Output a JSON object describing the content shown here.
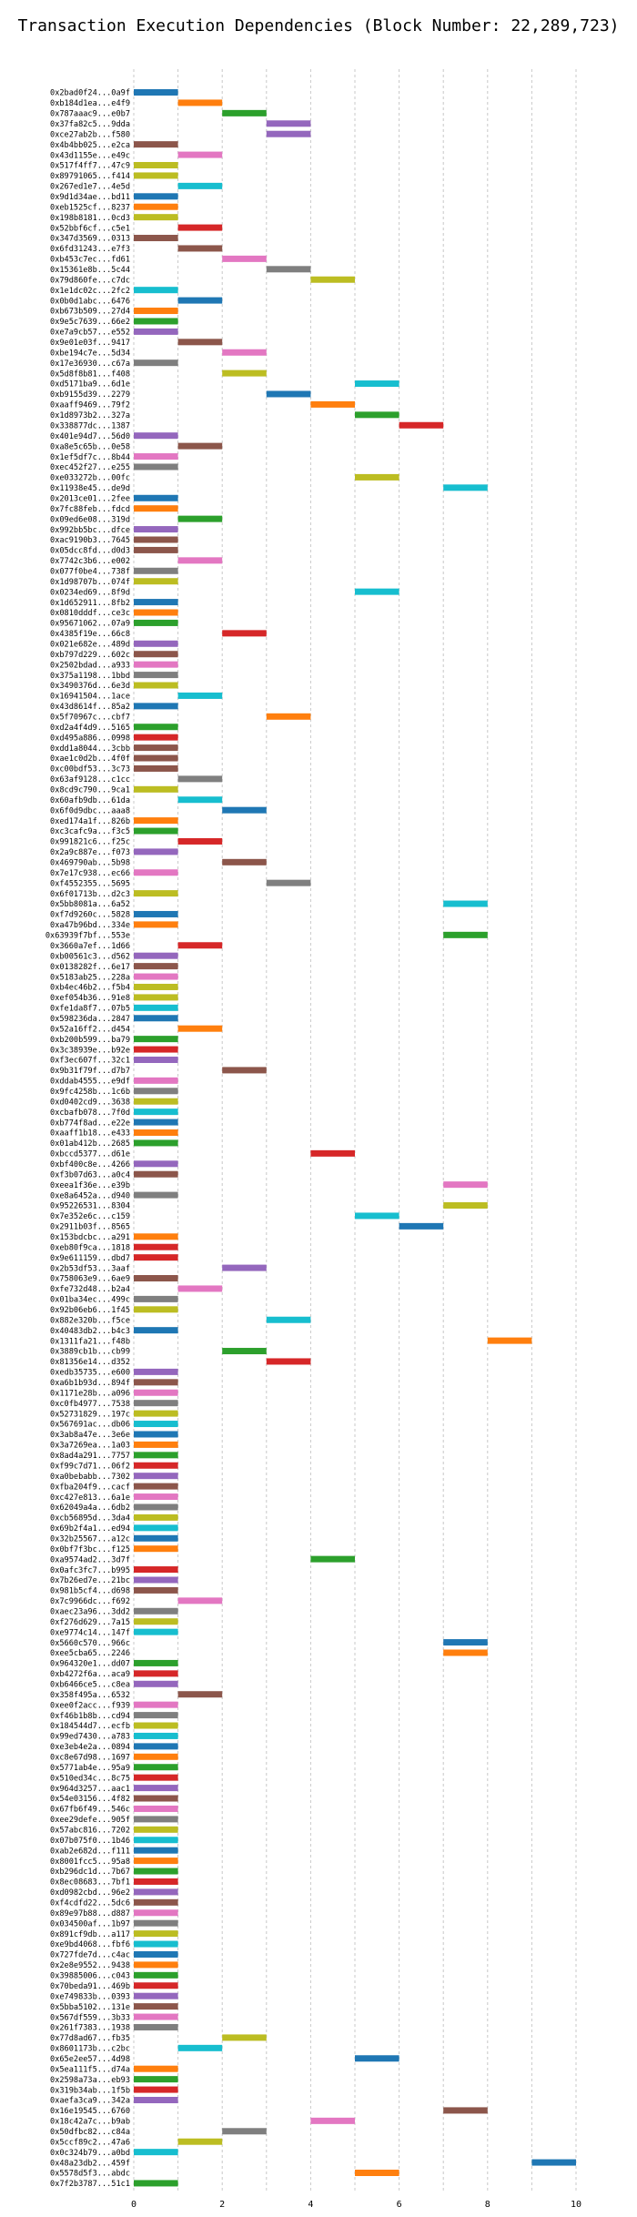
{
  "chart_data": {
    "type": "bar",
    "title": "Transaction Execution Dependencies (Block Number: 22,289,723)",
    "xlabel": "",
    "ylabel": "",
    "xlim": [
      0,
      10
    ],
    "x_ticks": [
      "0",
      "2",
      "4",
      "6",
      "8",
      "10"
    ],
    "grid": "dashed",
    "bar_height_units": 1,
    "palette": [
      "#1f77b4",
      "#ff7f0e",
      "#2ca02c",
      "#d62728",
      "#9467bd",
      "#8c564b",
      "#e377c2",
      "#7f7f7f",
      "#bcbd22",
      "#17becf"
    ],
    "transactions": [
      "0x2bad0f24...0a9f",
      "0xb184d1ea...e4f9",
      "0x787aaac9...e0b7",
      "0x37fa82c5...9dda",
      "0xce27ab2b...f580",
      "0x4b4bb025...e2ca",
      "0x43d1155e...e49c",
      "0x517f4ff7...47c9",
      "0x89791065...f414",
      "0x267ed1e7...4e5d",
      "0x9d1d34ae...bd11",
      "0xeb1525cf...8237",
      "0x198b8181...0cd3",
      "0x52bbf6cf...c5e1",
      "0x347d3569...0313",
      "0x6fd31243...e7f3",
      "0xb453c7ec...fd61",
      "0x15361e8b...5c44",
      "0x79d860fe...c7dc",
      "0x1e1dc02c...2fc2",
      "0x0b0d1abc...6476",
      "0xb673b509...27d4",
      "0x9e5c7639...66e2",
      "0xe7a9cb57...e552",
      "0x9e01e03f...9417",
      "0xbe194c7e...5d34",
      "0x17e36930...c67a",
      "0x5d8f8b81...f408",
      "0xd5171ba9...6d1e",
      "0xb9155d39...2279",
      "0xaaff9469...79f2",
      "0x1d8973b2...327a",
      "0x338877dc...1387",
      "0x401e94d7...56d0",
      "0xa8e5c65b...0e58",
      "0x1ef5df7c...8b44",
      "0xec452f27...e255",
      "0xe033272b...00fc",
      "0x11938e45...de9d",
      "0x2013ce01...2fee",
      "0x7fc88feb...fdcd",
      "0x09ed6e08...319d",
      "0x992bb5bc...dfce",
      "0xac9190b3...7645",
      "0x05dcc8fd...d0d3",
      "0x7742c3b6...e002",
      "0x077f0be4...738f",
      "0x1d98707b...074f",
      "0x0234ed69...8f9d",
      "0x1d652911...8fb2",
      "0x0810dddf...ce3c",
      "0x95671062...07a9",
      "0x4385f19e...66c8",
      "0x021e682e...489d",
      "0xb797d229...602c",
      "0x2502bdad...a933",
      "0x375a1198...1bbd",
      "0x3490376d...6e3d",
      "0x16941504...1ace",
      "0x43d8614f...85a2",
      "0x5f70967c...cbf7",
      "0xd2a4f4d9...5165",
      "0xd495a886...0998",
      "0xdd1a8044...3cbb",
      "0xae1c0d2b...4f0f",
      "0xc00bdf53...3c73",
      "0x63af9128...c1cc",
      "0x8cd9c790...9ca1",
      "0x60afb9db...61da",
      "0x6f0d9dbc...aaa8",
      "0xed174a1f...826b",
      "0xc3cafc9a...f3c5",
      "0x991821c6...f25c",
      "0x2a9c887e...f073",
      "0x469790ab...5b98",
      "0x7e17c938...ec66",
      "0xf4552355...5695",
      "0x6f01713b...d2c3",
      "0x5bb8081a...6a52",
      "0xf7d9260c...5828",
      "0xa47b96bd...334e",
      "0x63939f7bf...553e",
      "0x3660a7ef...1d66",
      "0xb00561c3...d562",
      "0x0138282f...6e17",
      "0x5183ab25...228a",
      "0xb4ec46b2...f5b4",
      "0xef054b36...91e8",
      "0xfe1da8f7...07b5",
      "0x598236da...2847",
      "0x52a16ff2...d454",
      "0xb200b599...ba79",
      "0x3c38939e...b92e",
      "0xf3ec607f...32c1",
      "0x9b31f79f...d7b7",
      "0xddab4555...e9df",
      "0x9fc4258b...1c6b",
      "0xd0402cd9...3638",
      "0xcbafb078...7f0d",
      "0xb774f8ad...e22e",
      "0xaaff1b18...e433",
      "0x01ab412b...2685",
      "0xbccd5377...d61e",
      "0xbf400c8e...4266",
      "0xf3b07d63...a0c4",
      "0xeea1f36e...e39b",
      "0xe8a6452a...d940",
      "0x95226531...8304",
      "0x7e352e6c...c159",
      "0x2911b03f...8565",
      "0x153bdcbc...a291",
      "0xeb80f9ca...1818",
      "0x9e611159...dbd7",
      "0x2b53df53...3aaf",
      "0x758063e9...6ae9",
      "0xfe732d48...b2a4",
      "0x01ba34ec...499c",
      "0x92b06eb6...1f45",
      "0x882e320b...f5ce",
      "0x40483db2...b4c3",
      "0x1311fa21...f48b",
      "0x3889cb1b...cb99",
      "0x81356e14...d352",
      "0xedb35735...e600",
      "0xa6b1b93d...894f",
      "0x1171e28b...a096",
      "0xc0fb4977...7538",
      "0x52731829...197c",
      "0x567691ac...db06",
      "0x3ab8a47e...3e6e",
      "0x3a7269ea...1a03",
      "0x8ad4a291...7757",
      "0xf99c7d71...06f2",
      "0xa0bebabb...7302",
      "0xfba204f9...cacf",
      "0xc427e813...6a1e",
      "0x62049a4a...6db2",
      "0xcb56895d...3da4",
      "0x69b2f4a1...ed94",
      "0x32b25567...a12c",
      "0x0bf7f3bc...f125",
      "0xa9574ad2...3d7f",
      "0x0afc3fc7...b995",
      "0x7b26ed7e...21bc",
      "0x981b5cf4...d698",
      "0x7c9966dc...f692",
      "0xaec23a96...3dd2",
      "0xf276d629...7a15",
      "0xe9774c14...147f",
      "0x5660c570...966c",
      "0xee5cba65...2246",
      "0x964320e1...dd07",
      "0xb4272f6a...aca9",
      "0xb6466ce5...c8ea",
      "0x358f495a...6532",
      "0xee0f2acc...f939",
      "0xf46b1b8b...cd94",
      "0x184544d7...ecfb",
      "0x99ed7430...a783",
      "0xe3eb4e2a...0894",
      "0xc8e67d98...1697",
      "0x5771ab4e...95a9",
      "0x510ed34c...8c75",
      "0x964d3257...aac1",
      "0x54e03156...4f82",
      "0x67fb6f49...546c",
      "0xee29defe...905f",
      "0x57abc816...7202",
      "0x07b075f0...1b46",
      "0xab2e682d...f111",
      "0x8001fcc5...95a8",
      "0xb296dc1d...7b67",
      "0x8ec08683...7bf1",
      "0xd0982cbd...96e2",
      "0xf4cdfd22...5dc6",
      "0x89e97b88...d887",
      "0x034500af...1b97",
      "0x891cf9db...a117",
      "0xe9bd4068...fbf6",
      "0x727fde7d...c4ac",
      "0x2e8e9552...9438",
      "0x39885006...c043",
      "0x70beda91...469b",
      "0xe749833b...0393",
      "0x5bba5102...131e",
      "0x567df559...3b33",
      "0x261f7383...1938",
      "0x77d8ad67...fb35",
      "0x8601173b...c2bc",
      "0x65e2ee57...4d98",
      "0x5ea111f5...d74a",
      "0x2598a73a...eb93",
      "0x319b34ab...1f5b",
      "0xaefa3ca9...342a",
      "0x16e19545...6760",
      "0x18c42a7c...b9ab",
      "0x50dfbc82...c84a",
      "0x5ccf89c2...47a6",
      "0x0c324b79...a0bd",
      "0x48a23db2...459f",
      "0x5578d5f3...abdc",
      "0x7f2b3787...51c1"
    ],
    "start_times": [
      0,
      1,
      2,
      3,
      3,
      0,
      1,
      0,
      0,
      1,
      0,
      0,
      0,
      1,
      0,
      1,
      2,
      3,
      4,
      0,
      1,
      0,
      0,
      0,
      1,
      2,
      0,
      2,
      5,
      3,
      4,
      5,
      6,
      0,
      1,
      0,
      0,
      5,
      7,
      0,
      0,
      1,
      0,
      0,
      0,
      1,
      0,
      0,
      5,
      0,
      0,
      0,
      2,
      0,
      0,
      0,
      0,
      0,
      1,
      0,
      3,
      0,
      0,
      0,
      0,
      0,
      1,
      0,
      1,
      2,
      0,
      0,
      1,
      0,
      2,
      0,
      3,
      0,
      7,
      0,
      0,
      7,
      1,
      0,
      0,
      0,
      0,
      0,
      0,
      0,
      1,
      0,
      0,
      0,
      2,
      0,
      0,
      0,
      0,
      0,
      0,
      0,
      4,
      0,
      0,
      7,
      0,
      7,
      5,
      6,
      0,
      0,
      0,
      2,
      0,
      1,
      0,
      0,
      3,
      0,
      8,
      2,
      3,
      0,
      0,
      0,
      0,
      0,
      0,
      0,
      0,
      0,
      0,
      0,
      0,
      0,
      0,
      0,
      0,
      0,
      0,
      4,
      0,
      0,
      0,
      1,
      0,
      0,
      0,
      7,
      7,
      0,
      0,
      0,
      1,
      0,
      0,
      0,
      0,
      0,
      0,
      0,
      0,
      0,
      0,
      0,
      0,
      0,
      0,
      0,
      0,
      0,
      0,
      0,
      0,
      0,
      0,
      0,
      0,
      0,
      0,
      0,
      0,
      0,
      0,
      0,
      0,
      2,
      1,
      5,
      0,
      0,
      0,
      0,
      7,
      4,
      2,
      1,
      0,
      9,
      5,
      0
    ],
    "colors": [
      0,
      1,
      2,
      4,
      4,
      5,
      6,
      8,
      8,
      9,
      0,
      1,
      8,
      3,
      5,
      5,
      6,
      7,
      8,
      9,
      0,
      1,
      2,
      4,
      5,
      6,
      7,
      8,
      9,
      0,
      1,
      2,
      3,
      4,
      5,
      6,
      7,
      8,
      9,
      0,
      1,
      2,
      4,
      5,
      5,
      6,
      7,
      8,
      9,
      0,
      1,
      2,
      3,
      4,
      5,
      6,
      7,
      8,
      9,
      0,
      1,
      2,
      3,
      5,
      5,
      5,
      7,
      8,
      9,
      0,
      1,
      2,
      3,
      4,
      5,
      6,
      7,
      8,
      9,
      0,
      1,
      2,
      3,
      4,
      5,
      6,
      8,
      8,
      9,
      0,
      1,
      2,
      3,
      4,
      5,
      6,
      7,
      8,
      9,
      0,
      1,
      2,
      3,
      4,
      5,
      6,
      7,
      8,
      9,
      0,
      1,
      3,
      3,
      4,
      5,
      6,
      7,
      8,
      9,
      0,
      1,
      2,
      3,
      4,
      5,
      6,
      7,
      8,
      9,
      0,
      1,
      2,
      3,
      4,
      5,
      6,
      7,
      8,
      9,
      0,
      1,
      2,
      3,
      4,
      5,
      6,
      7,
      8,
      9,
      0,
      1,
      2,
      3,
      4,
      5,
      6,
      7,
      8,
      9,
      0,
      1,
      2,
      3,
      4,
      5,
      6,
      7,
      8,
      9,
      0,
      1,
      2,
      3,
      4,
      5,
      6,
      7,
      8,
      9,
      0,
      1,
      2,
      3,
      4,
      5,
      6,
      7,
      8,
      9,
      0,
      1,
      2,
      3,
      4,
      5,
      6,
      7,
      8,
      9,
      0,
      1,
      2
    ]
  }
}
